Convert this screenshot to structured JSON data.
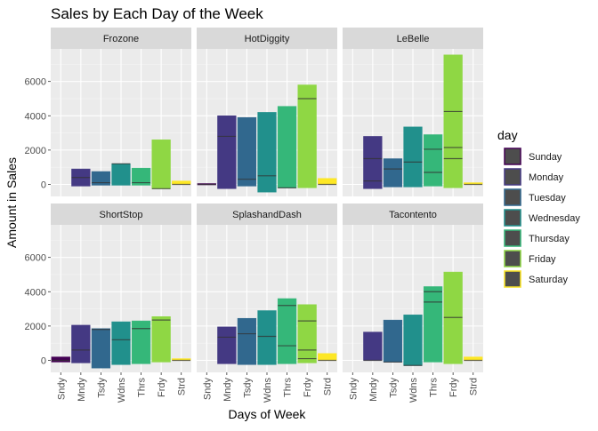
{
  "chart_data": {
    "type": "boxplot-faceted",
    "title": "Sales by Each Day of the Week",
    "xlabel": "Days of Week",
    "ylabel": "Amount in Sales",
    "categories": [
      "Sndy",
      "Mndy",
      "Tsdy",
      "Wdns",
      "Thrs",
      "Frdy",
      "Strd"
    ],
    "y_ticks": [
      0,
      2000,
      4000,
      6000
    ],
    "ylim": [
      -700,
      7900
    ],
    "grid": true,
    "legend": {
      "title": "day",
      "placement": "right",
      "entries": [
        "Sunday",
        "Monday",
        "Tuesday",
        "Wednesday",
        "Thursday",
        "Friday",
        "Saturday"
      ]
    },
    "colors": [
      "#440154",
      "#443983",
      "#31688E",
      "#21908C",
      "#35B779",
      "#8FD744",
      "#FDE725"
    ],
    "facets": [
      {
        "name": "Frozone",
        "boxes": [
          null,
          {
            "low": -100,
            "high": 900,
            "medians": [
              400
            ]
          },
          {
            "low": -50,
            "high": 750,
            "medians": [
              100
            ]
          },
          {
            "low": -50,
            "high": 1200,
            "medians": [
              1200
            ]
          },
          {
            "low": -50,
            "high": 950,
            "medians": [
              100
            ]
          },
          {
            "low": -250,
            "high": 2600,
            "medians": [
              -250
            ]
          },
          {
            "low": 0,
            "high": 200,
            "medians": [
              0
            ]
          }
        ]
      },
      {
        "name": "HotDiggity",
        "boxes": [
          {
            "low": 0,
            "high": 50,
            "medians": [
              0
            ]
          },
          {
            "low": -250,
            "high": 4000,
            "medians": [
              2800
            ]
          },
          {
            "low": -100,
            "high": 3900,
            "medians": [
              300
            ]
          },
          {
            "low": -450,
            "high": 4200,
            "medians": [
              500
            ]
          },
          {
            "low": -200,
            "high": 4550,
            "medians": [
              -200
            ]
          },
          {
            "low": -200,
            "high": 5800,
            "medians": [
              5000
            ]
          },
          {
            "low": 0,
            "high": 350,
            "medians": [
              0
            ]
          }
        ]
      },
      {
        "name": "LeBelle",
        "boxes": [
          null,
          {
            "low": -250,
            "high": 2800,
            "medians": [
              1500,
              200
            ]
          },
          {
            "low": -150,
            "high": 1500,
            "medians": [
              900
            ]
          },
          {
            "low": -150,
            "high": 3350,
            "medians": [
              1300
            ]
          },
          {
            "low": -100,
            "high": 2900,
            "medians": [
              2050,
              700
            ]
          },
          {
            "low": -200,
            "high": 7550,
            "medians": [
              4250,
              2150,
              1500
            ]
          },
          {
            "low": 0,
            "high": 100,
            "medians": [
              0
            ]
          }
        ]
      },
      {
        "name": "ShortStop",
        "boxes": [
          {
            "low": -100,
            "high": 200,
            "medians": [
              0
            ]
          },
          {
            "low": -150,
            "high": 2050,
            "medians": [
              600
            ]
          },
          {
            "low": -450,
            "high": 1850,
            "medians": [
              1800
            ]
          },
          {
            "low": -250,
            "high": 2250,
            "medians": [
              1200
            ]
          },
          {
            "low": -200,
            "high": 2300,
            "medians": [
              1850
            ]
          },
          {
            "low": -100,
            "high": 2550,
            "medians": [
              2350
            ]
          },
          {
            "low": 0,
            "high": 100,
            "medians": [
              0
            ]
          }
        ]
      },
      {
        "name": "SplashandDash",
        "boxes": [
          null,
          {
            "low": -200,
            "high": 1950,
            "medians": [
              1350
            ]
          },
          {
            "low": -250,
            "high": 2450,
            "medians": [
              1550
            ]
          },
          {
            "low": -250,
            "high": 2900,
            "medians": [
              1400
            ]
          },
          {
            "low": -200,
            "high": 3600,
            "medians": [
              850,
              3200
            ]
          },
          {
            "low": -150,
            "high": 3250,
            "medians": [
              600,
              2300,
              100
            ]
          },
          {
            "low": 0,
            "high": 400,
            "medians": [
              0
            ]
          }
        ]
      },
      {
        "name": "Tacontento",
        "boxes": [
          null,
          {
            "low": 0,
            "high": 1650,
            "medians": [
              0
            ]
          },
          {
            "low": -100,
            "high": 2350,
            "medians": [
              -100
            ]
          },
          {
            "low": -300,
            "high": 2650,
            "medians": [
              -300
            ]
          },
          {
            "low": -100,
            "high": 4300,
            "medians": [
              4000,
              3400
            ]
          },
          {
            "low": -200,
            "high": 5150,
            "medians": [
              2500
            ]
          },
          {
            "low": 0,
            "high": 200,
            "medians": [
              0
            ]
          }
        ]
      }
    ]
  }
}
